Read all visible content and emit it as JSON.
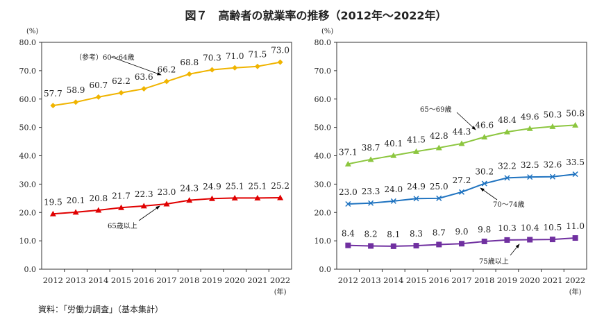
{
  "title": "図７　高齢者の就業率の推移（2012年～2022年）",
  "source": "資料：「労働力調査」（基本集計）",
  "chart_data": [
    {
      "type": "line",
      "ylabel": "(%)",
      "xunit": "(年)",
      "ylim": [
        0,
        80
      ],
      "yticks": [
        "0.0",
        "10.0",
        "20.0",
        "30.0",
        "40.0",
        "50.0",
        "60.0",
        "70.0",
        "80.0"
      ],
      "x": [
        "2012",
        "2013",
        "2014",
        "2015",
        "2016",
        "2017",
        "2018",
        "2019",
        "2020",
        "2021",
        "2022"
      ],
      "grid": false,
      "series": [
        {
          "name": "（参考）60～64歳",
          "color": "#f0b400",
          "marker": "diamond",
          "values": [
            57.7,
            58.9,
            60.7,
            62.2,
            63.6,
            66.2,
            68.8,
            70.3,
            71.0,
            71.5,
            73.0
          ]
        },
        {
          "name": "65歳以上",
          "color": "#e00000",
          "marker": "triangle",
          "values": [
            19.5,
            20.1,
            20.8,
            21.7,
            22.3,
            23.0,
            24.3,
            24.9,
            25.1,
            25.1,
            25.2
          ]
        }
      ]
    },
    {
      "type": "line",
      "ylabel": "(%)",
      "xunit": "(年)",
      "ylim": [
        0,
        80
      ],
      "yticks": [
        "0.0",
        "10.0",
        "20.0",
        "30.0",
        "40.0",
        "50.0",
        "60.0",
        "70.0",
        "80.0"
      ],
      "x": [
        "2012",
        "2013",
        "2014",
        "2015",
        "2016",
        "2017",
        "2018",
        "2019",
        "2020",
        "2021",
        "2022"
      ],
      "grid": false,
      "series": [
        {
          "name": "65～69歳",
          "color": "#8cc63f",
          "marker": "triangle",
          "values": [
            37.1,
            38.7,
            40.1,
            41.5,
            42.8,
            44.3,
            46.6,
            48.4,
            49.6,
            50.3,
            50.8
          ]
        },
        {
          "name": "70～74歳",
          "color": "#1f73c0",
          "marker": "x",
          "values": [
            23.0,
            23.3,
            24.0,
            24.9,
            25.0,
            27.2,
            30.2,
            32.2,
            32.5,
            32.6,
            33.5
          ]
        },
        {
          "name": "75歳以上",
          "color": "#7030a0",
          "marker": "square",
          "values": [
            8.4,
            8.2,
            8.1,
            8.3,
            8.7,
            9.0,
            9.8,
            10.3,
            10.4,
            10.5,
            11.0
          ]
        }
      ]
    }
  ]
}
